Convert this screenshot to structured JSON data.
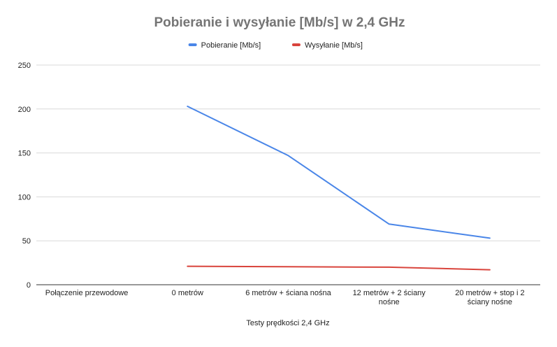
{
  "chart_data": {
    "type": "line",
    "title": "Pobieranie i wysyłanie [Mb/s] w 2,4 GHz",
    "xlabel": "Testy prędkości 2,4 GHz",
    "ylabel": "",
    "ylim": [
      0,
      250
    ],
    "yticks": [
      0,
      50,
      100,
      150,
      200,
      250
    ],
    "grid": true,
    "legend_position": "top",
    "categories": [
      [
        "Połączenie przewodowe"
      ],
      [
        "0 metrów"
      ],
      [
        "6 metrów + ściana nośna"
      ],
      [
        "12 metrów + 2 ściany",
        "nośne"
      ],
      [
        "20 metrów + stop i 2",
        "ściany nośne"
      ]
    ],
    "series": [
      {
        "name": "Pobieranie [Mb/s]",
        "color": "#4a86e8",
        "values": [
          null,
          203,
          147,
          69,
          53
        ]
      },
      {
        "name": "Wysyłanie [Mb/s]",
        "color": "#d9443c",
        "values": [
          null,
          21,
          20.5,
          20,
          17
        ]
      }
    ]
  }
}
